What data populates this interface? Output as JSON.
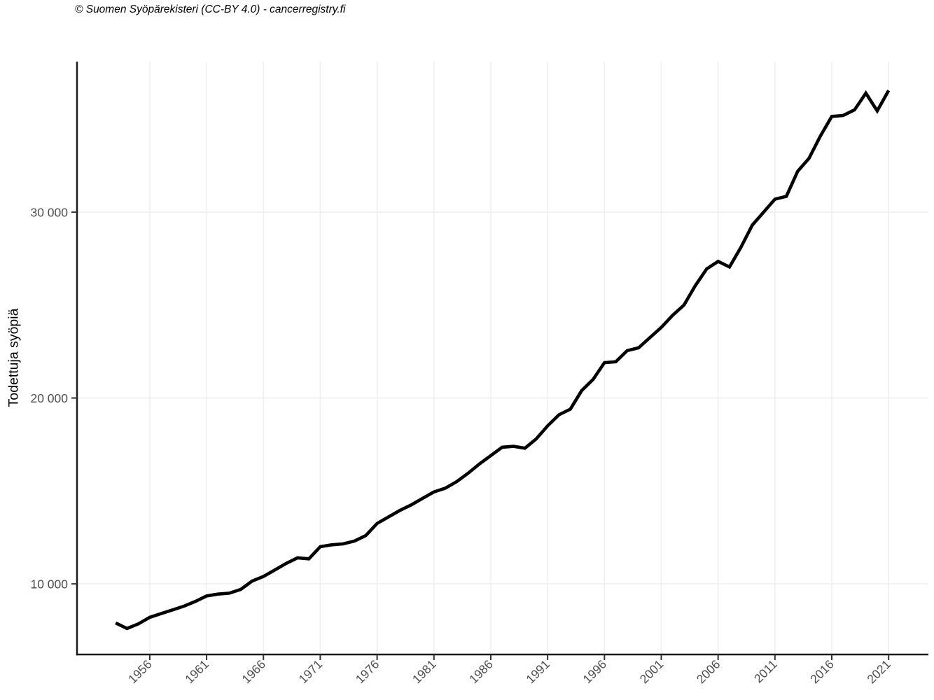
{
  "attribution": "© Suomen Syöpärekisteri (CC-BY 4.0) - cancerregistry.fi",
  "y_axis_title": "Todettuja syöpiä",
  "chart_data": {
    "type": "line",
    "title": "© Suomen Syöpärekisteri (CC-BY 4.0) - cancerregistry.fi",
    "xlabel": "",
    "ylabel": "Todettuja syöpiä",
    "legend": "none",
    "grid": "major-only",
    "xlim": [
      1949.6,
      2024.5
    ],
    "ylim": [
      6200,
      38100
    ],
    "x_ticks": [
      1956,
      1961,
      1966,
      1971,
      1976,
      1981,
      1986,
      1991,
      1996,
      2001,
      2006,
      2011,
      2016,
      2021
    ],
    "x_tick_labels": [
      "1956",
      "1961",
      "1966",
      "1971",
      "1976",
      "1981",
      "1986",
      "1991",
      "1996",
      "2001",
      "2006",
      "2011",
      "2016",
      "2021"
    ],
    "y_ticks": [
      10000,
      20000,
      30000
    ],
    "y_tick_labels": [
      "10 000",
      "20 000",
      "30 000"
    ],
    "series": [
      {
        "name": "Todettuja syöpiä",
        "x": [
          1953,
          1954,
          1955,
          1956,
          1957,
          1958,
          1959,
          1960,
          1961,
          1962,
          1963,
          1964,
          1965,
          1966,
          1967,
          1968,
          1969,
          1970,
          1971,
          1972,
          1973,
          1974,
          1975,
          1976,
          1977,
          1978,
          1979,
          1980,
          1981,
          1982,
          1983,
          1984,
          1985,
          1986,
          1987,
          1988,
          1989,
          1990,
          1991,
          1992,
          1993,
          1994,
          1995,
          1996,
          1997,
          1998,
          1999,
          2000,
          2001,
          2002,
          2003,
          2004,
          2005,
          2006,
          2007,
          2008,
          2009,
          2010,
          2011,
          2012,
          2013,
          2014,
          2015,
          2016,
          2017,
          2018,
          2019,
          2020,
          2021
        ],
        "values": [
          7900,
          7600,
          7850,
          8200,
          8400,
          8600,
          8800,
          9050,
          9350,
          9450,
          9500,
          9700,
          10150,
          10400,
          10750,
          11100,
          11400,
          11350,
          12000,
          12100,
          12150,
          12300,
          12600,
          13250,
          13600,
          13950,
          14250,
          14600,
          14950,
          15150,
          15500,
          15950,
          16450,
          16900,
          17350,
          17400,
          17300,
          17800,
          18500,
          19100,
          19400,
          20400,
          21000,
          21900,
          21950,
          22550,
          22700,
          23250,
          23800,
          24450,
          25000,
          26050,
          26950,
          27350,
          27050,
          28100,
          29300,
          30000,
          30700,
          30850,
          32200,
          32900,
          34100,
          35150,
          35200,
          35500,
          36400,
          35450,
          36550
        ]
      }
    ],
    "colors": {
      "line": "#000000",
      "grid": "#efefef",
      "axis": "#1a1a1a",
      "tick": "#333333",
      "tick_label": "#4d4d4d"
    }
  }
}
